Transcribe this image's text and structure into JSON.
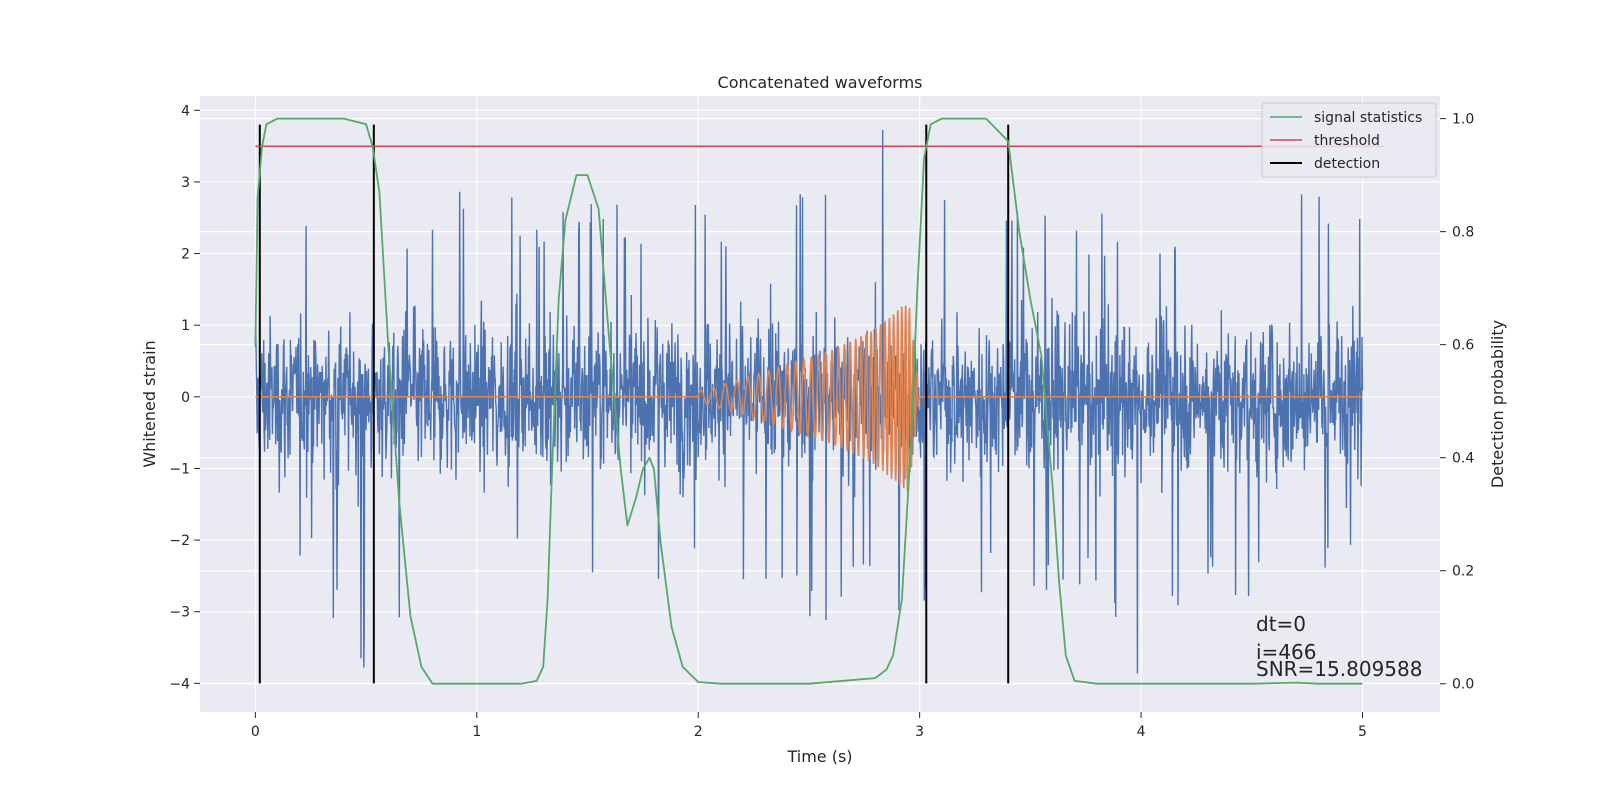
{
  "chart_data": {
    "type": "line",
    "title": "Concatenated waveforms",
    "xlabel": "Time (s)",
    "ylabel": "Whitened strain",
    "y2label": "Detection probability",
    "xlim": [
      -0.25,
      5.35
    ],
    "ylim": [
      -4.4,
      4.2
    ],
    "y2lim": [
      -0.05,
      1.04
    ],
    "x_ticks": [
      0,
      1,
      2,
      3,
      4,
      5
    ],
    "y_ticks": [
      -4,
      -3,
      -2,
      -1,
      0,
      1,
      2,
      3,
      4
    ],
    "y2_ticks": [
      0.0,
      0.2,
      0.4,
      0.6,
      0.8,
      1.0
    ],
    "x_tick_labels": [
      "0",
      "1",
      "2",
      "3",
      "4",
      "5"
    ],
    "y_tick_labels": [
      "−4",
      "−3",
      "−2",
      "−1",
      "0",
      "1",
      "2",
      "3",
      "4"
    ],
    "y2_tick_labels": [
      "0.0",
      "0.2",
      "0.4",
      "0.6",
      "0.8",
      "1.0"
    ],
    "grid": true,
    "legend_position": "top-right",
    "colors": {
      "background": "#eaeaf2",
      "grid": "#ffffff",
      "strain": "#4c72b0",
      "template": "#dd8452",
      "signal_statistics": "#55a868",
      "threshold": "#c44e52",
      "detection": "#000000"
    },
    "series": [
      {
        "name": "",
        "axis": "left",
        "description": "noisy whitened strain (dense blue trace, approx. envelope)",
        "x": [
          0,
          0.25,
          0.5,
          0.75,
          1,
          1.25,
          1.5,
          1.75,
          2,
          2.25,
          2.5,
          2.75,
          3,
          3.25,
          3.5,
          3.75,
          4,
          4.25,
          4.5,
          4.75,
          5
        ],
        "upper": [
          2.2,
          2.8,
          3.0,
          2.4,
          3.6,
          2.4,
          2.8,
          2.6,
          2.8,
          2.8,
          2.9,
          3.8,
          3.8,
          2.9,
          2.6,
          2.6,
          2.6,
          2.8,
          2.8,
          3.6,
          2.6
        ],
        "lower": [
          -1.9,
          -2.5,
          -4.0,
          -2.8,
          -2.2,
          -2.6,
          -2.5,
          -2.7,
          -2.5,
          -2.6,
          -3.2,
          -3.0,
          -3.2,
          -2.8,
          -3.1,
          -2.6,
          -4.0,
          -2.5,
          -3.0,
          -2.5,
          -2.3
        ]
      },
      {
        "name": "",
        "axis": "left",
        "description": "injected chirp template (orange), zero outside 2.0–3.0 s",
        "x": [
          0,
          2.0,
          2.2,
          2.4,
          2.6,
          2.8,
          2.95,
          3.0,
          5
        ],
        "amplitude": [
          0,
          0.08,
          0.25,
          0.45,
          0.65,
          0.95,
          1.35,
          0,
          0
        ]
      },
      {
        "name": "signal statistics",
        "axis": "right",
        "x": [
          0.0,
          0.01,
          0.03,
          0.05,
          0.1,
          0.2,
          0.4,
          0.5,
          0.53,
          0.56,
          0.6,
          0.65,
          0.7,
          0.75,
          0.8,
          0.9,
          1.2,
          1.27,
          1.3,
          1.32,
          1.34,
          1.37,
          1.4,
          1.45,
          1.5,
          1.55,
          1.6,
          1.65,
          1.68,
          1.72,
          1.75,
          1.78,
          1.8,
          1.83,
          1.88,
          1.93,
          2.0,
          2.1,
          2.5,
          2.8,
          2.85,
          2.88,
          2.92,
          2.96,
          2.99,
          3.02,
          3.05,
          3.1,
          3.3,
          3.4,
          3.45,
          3.5,
          3.55,
          3.6,
          3.63,
          3.66,
          3.7,
          3.8,
          4.5,
          4.7,
          4.8,
          5.0
        ],
        "values": [
          0.6,
          0.86,
          0.95,
          0.99,
          1.0,
          1.0,
          1.0,
          0.99,
          0.95,
          0.87,
          0.6,
          0.32,
          0.12,
          0.03,
          0.0,
          0.0,
          0.0,
          0.005,
          0.03,
          0.15,
          0.38,
          0.68,
          0.82,
          0.9,
          0.9,
          0.84,
          0.6,
          0.38,
          0.28,
          0.33,
          0.38,
          0.4,
          0.38,
          0.25,
          0.1,
          0.03,
          0.003,
          0.0,
          0.0,
          0.01,
          0.025,
          0.05,
          0.15,
          0.42,
          0.7,
          0.93,
          0.99,
          1.0,
          1.0,
          0.96,
          0.8,
          0.68,
          0.58,
          0.35,
          0.18,
          0.05,
          0.005,
          0.0,
          0.0,
          0.002,
          0.0,
          0.0
        ]
      },
      {
        "name": "threshold",
        "axis": "right",
        "x": [
          0,
          5.1
        ],
        "values": [
          0.951,
          0.951
        ]
      },
      {
        "name": "detection",
        "axis": "left",
        "type": "vlines",
        "x": [
          0.02,
          0.535,
          3.03,
          3.4
        ],
        "ymin": -4.0,
        "ymax": 3.8
      }
    ],
    "legend": [
      "signal statistics",
      "threshold",
      "detection"
    ],
    "annotations": [
      "dt=0",
      "i=466",
      "SNR=15.809588"
    ]
  }
}
